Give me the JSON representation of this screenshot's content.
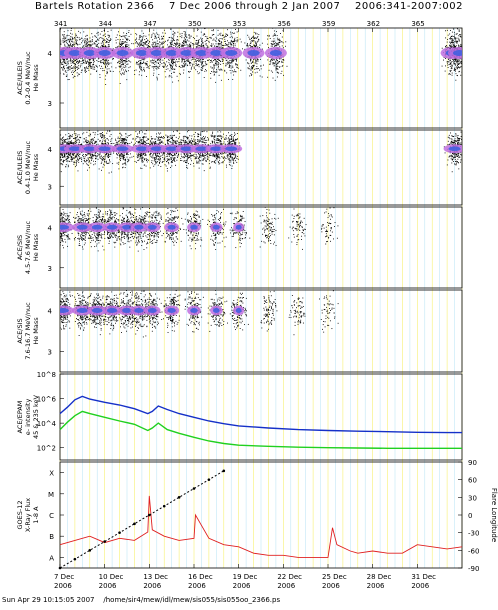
{
  "header": {
    "title": "Bartels Rotation 2366    7 Dec 2006 through 2 Jan 2007    2006:341-2007:002"
  },
  "footer": {
    "text": "Sun Apr 29 10:15:05 2007    /home/sir4/mew/idl/mew/sis055/sis055oo_2366.ps"
  },
  "colors": {
    "grid_yellow": "#f2e600",
    "grid_cyan": "#8fd4f0",
    "density_purple": "#c070e0",
    "density_blue": "#4060e0",
    "epam_blue": "#1530c8",
    "epam_green": "#20d020",
    "xray_red": "#e02020",
    "longitude_black": "#000000"
  },
  "chart_data": [
    {
      "type": "scatter",
      "panel": "ace-uleis-low",
      "ylabel": [
        "ACE/ULEIS",
        "0.2-0.4 MeV/nuc",
        "He Mass"
      ],
      "y_ticks": [
        "4",
        "3"
      ],
      "top_axis_ticks": [
        "341",
        "344",
        "347",
        "350",
        "353",
        "356",
        "359",
        "362",
        "365"
      ],
      "series": [
        {
          "name": "",
          "x": [
            0.3,
            1.0,
            2.0,
            3.0,
            4.2,
            5.5,
            6.5,
            7.5,
            8.5,
            9.5,
            10.5,
            11.5,
            13.0,
            14.5,
            26.3,
            26.8
          ],
          "y": [
            4.0,
            4.0,
            4.0,
            4.0,
            4.0,
            4.0,
            4.0,
            4.0,
            4.0,
            4.0,
            4.0,
            4.0,
            4.0,
            4.0,
            4.0,
            4.0
          ]
        }
      ]
    },
    {
      "type": "scatter",
      "panel": "ace-uleis-high",
      "ylabel": [
        "ACE/ULEIS",
        "0.4-1.0 MeV/nuc",
        "He Mass"
      ],
      "y_ticks": [
        "4",
        "3"
      ],
      "series": [
        {
          "name": "",
          "x": [
            0.3,
            1.0,
            2.0,
            3.0,
            4.2,
            5.5,
            6.5,
            7.5,
            8.5,
            9.5,
            10.5,
            11.5,
            26.5
          ],
          "y": [
            4.0,
            4.0,
            4.0,
            4.0,
            4.0,
            4.0,
            4.0,
            4.0,
            4.0,
            4.0,
            4.0,
            4.0,
            4.0
          ]
        }
      ]
    },
    {
      "type": "scatter",
      "panel": "ace-sis-low",
      "ylabel": [
        "ACE/SIS",
        "4.5-7.6 MeV/nuc",
        "He Mass"
      ],
      "y_ticks": [
        "4",
        "3"
      ],
      "series": [
        {
          "name": "",
          "x": [
            0.2,
            1.5,
            2.5,
            3.5,
            4.5,
            5.3,
            6.2,
            7.5,
            9.0,
            10.5,
            12.0,
            14.0,
            16.0,
            18.0
          ],
          "y": [
            4.0,
            4.0,
            4.0,
            4.0,
            4.0,
            4.0,
            4.0,
            4.0,
            4.0,
            4.0,
            4.0,
            4.0,
            4.0,
            4.0
          ]
        }
      ]
    },
    {
      "type": "scatter",
      "panel": "ace-sis-high",
      "ylabel": [
        "ACE/SIS",
        "7.6-16.7 MeV/nuc",
        "He Mass"
      ],
      "y_ticks": [
        "4",
        "3"
      ],
      "series": [
        {
          "name": "",
          "x": [
            0.2,
            1.5,
            2.5,
            3.5,
            4.5,
            5.3,
            6.2,
            7.5,
            9.0,
            10.5,
            12.0,
            14.0,
            16.0,
            18.0
          ],
          "y": [
            4.0,
            4.0,
            4.0,
            4.0,
            4.0,
            4.0,
            4.0,
            4.0,
            4.0,
            4.0,
            4.0,
            4.0,
            4.0,
            4.0
          ]
        }
      ]
    },
    {
      "type": "line",
      "panel": "ace-epam",
      "ylabel": [
        "ACE/EPAM",
        "e- intensity",
        "45 & 235 keV"
      ],
      "y_scale": "log",
      "ylim": [
        10,
        100000000
      ],
      "y_ticks": [
        "10^8",
        "10^6",
        "10^4",
        "10^2"
      ],
      "series": [
        {
          "name": "",
          "color": "#1530c8",
          "x": [
            0.0,
            0.5,
            1.0,
            1.5,
            2.0,
            3.0,
            4.0,
            5.0,
            5.9,
            6.2,
            6.6,
            7.2,
            8.0,
            9.0,
            10.0,
            11.0,
            12.0,
            14.0,
            16.0,
            18.0,
            20.0,
            22.0,
            24.0,
            26.0,
            27.0
          ],
          "y": [
            60000,
            200000,
            800000,
            1500000,
            900000,
            500000,
            300000,
            150000,
            60000,
            90000,
            250000,
            130000,
            60000,
            30000,
            15000,
            9000,
            6000,
            4000,
            3000,
            2500,
            2200,
            2000,
            1800,
            1700,
            1700
          ]
        },
        {
          "name": "",
          "color": "#20d020",
          "x": [
            0.0,
            0.5,
            1.0,
            1.5,
            2.0,
            3.0,
            4.0,
            5.0,
            5.9,
            6.2,
            6.6,
            7.2,
            8.0,
            9.0,
            10.0,
            11.0,
            12.0,
            14.0,
            16.0,
            18.0,
            20.0,
            22.0,
            24.0,
            26.0,
            27.0
          ],
          "y": [
            3000,
            12000,
            40000,
            90000,
            60000,
            30000,
            15000,
            8000,
            2500,
            4000,
            10000,
            3000,
            1500,
            700,
            350,
            220,
            160,
            130,
            110,
            100,
            95,
            90,
            90,
            90,
            90
          ]
        }
      ]
    },
    {
      "type": "line",
      "panel": "goes-xray",
      "ylabel": [
        "GOES-12",
        "X-Ray Flux",
        "1-8 A"
      ],
      "y_ticks": [
        "X",
        "M",
        "C",
        "B",
        "A"
      ],
      "right_label": "Flare Longitude",
      "right_ticks": [
        "90",
        "60",
        "30",
        "0",
        "-30",
        "-60",
        "-90"
      ],
      "x_tick_labels": [
        [
          "7 Dec",
          "2006"
        ],
        [
          "10 Dec",
          "2006"
        ],
        [
          "13 Dec",
          "2006"
        ],
        [
          "16 Dec",
          "2006"
        ],
        [
          "19 Dec",
          "2006"
        ],
        [
          "22 Dec",
          "2006"
        ],
        [
          "25 Dec",
          "2006"
        ],
        [
          "28 Dec",
          "2006"
        ],
        [
          "31 Dec",
          "2006"
        ]
      ],
      "series": [
        {
          "name": "",
          "color": "#e02020",
          "x": [
            0.0,
            1.0,
            2.0,
            3.0,
            4.0,
            5.0,
            5.9,
            6.0,
            6.2,
            7.0,
            8.0,
            9.0,
            9.1,
            10.0,
            11.0,
            12.0,
            13.0,
            14.0,
            15.0,
            16.0,
            17.0,
            18.0,
            18.3,
            18.6,
            19.5,
            20.0,
            21.0,
            22.0,
            23.0,
            24.0,
            25.0,
            26.0,
            27.0
          ],
          "y": [
            1.6,
            1.8,
            2.0,
            1.7,
            1.9,
            1.8,
            2.2,
            3.9,
            2.3,
            2.0,
            1.8,
            1.9,
            3.0,
            1.9,
            1.6,
            1.5,
            1.2,
            1.1,
            1.1,
            1.0,
            1.0,
            1.0,
            2.4,
            1.6,
            1.3,
            1.2,
            1.3,
            1.2,
            1.2,
            1.6,
            1.5,
            1.4,
            1.5
          ]
        },
        {
          "name": "",
          "color": "#000000",
          "marker": "dot",
          "x": [
            0.0,
            1.0,
            2.0,
            3.0,
            4.0,
            5.0,
            6.0,
            7.0,
            8.0,
            9.0,
            10.0,
            11.0
          ],
          "y": [
            -90,
            -75,
            -60,
            -45,
            -30,
            -15,
            0,
            15,
            30,
            45,
            60,
            75
          ]
        }
      ]
    }
  ]
}
